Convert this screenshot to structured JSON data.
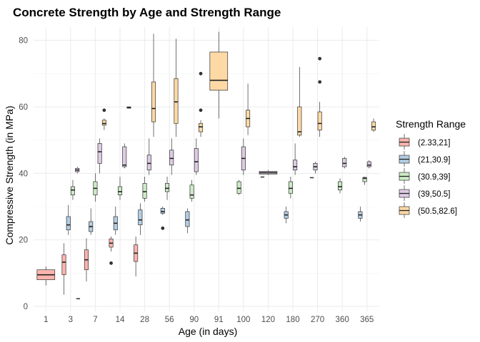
{
  "chart_data": {
    "type": "box",
    "title": "Concrete Strength by Age and Strength Range",
    "xlabel": "Age (in days)",
    "ylabel": "Compressive Strength (in MPa)",
    "ylim": [
      -1.5,
      84
    ],
    "yticks": [
      0,
      20,
      40,
      60,
      80
    ],
    "grid": true,
    "legend_position": "right",
    "legend_title": "Strength Range",
    "categories": [
      "1",
      "3",
      "7",
      "14",
      "28",
      "56",
      "90",
      "91",
      "100",
      "120",
      "180",
      "270",
      "360",
      "365"
    ],
    "series": [
      {
        "name": "(2.33,21]",
        "color": "#FBB4AE",
        "boxes": [
          {
            "category": "1",
            "q1": 8,
            "median": 9.5,
            "q3": 11,
            "whisker_low": 6.3,
            "whisker_high": 12,
            "outliers": []
          },
          {
            "category": "3",
            "q1": 9.5,
            "median": 13.3,
            "q3": 15.5,
            "whisker_low": 3.5,
            "whisker_high": 19,
            "outliers": []
          },
          {
            "category": "7",
            "q1": 11,
            "median": 14,
            "q3": 17,
            "whisker_low": 7.5,
            "whisker_high": 20.5,
            "outliers": []
          },
          {
            "category": "14",
            "q1": 17.8,
            "median": 19,
            "q3": 20.3,
            "whisker_low": 16.5,
            "whisker_high": 21,
            "outliers": [
              13
            ]
          },
          {
            "category": "28",
            "q1": 13.5,
            "median": 16,
            "q3": 18.5,
            "whisker_low": 9,
            "whisker_high": 21,
            "outliers": []
          }
        ]
      },
      {
        "name": "(21,30.9]",
        "color": "#B3CDE3",
        "boxes": [
          {
            "category": "3",
            "q1": 23,
            "median": 24.5,
            "q3": 27,
            "whisker_low": 21.5,
            "whisker_high": 30.5,
            "outliers": []
          },
          {
            "category": "7",
            "q1": 22.5,
            "median": 24,
            "q3": 25.5,
            "whisker_low": 21.5,
            "whisker_high": 29.5,
            "outliers": []
          },
          {
            "category": "14",
            "q1": 23,
            "median": 25,
            "q3": 27,
            "whisker_low": 21.5,
            "whisker_high": 30,
            "outliers": []
          },
          {
            "category": "28",
            "q1": 24.5,
            "median": 26,
            "q3": 29,
            "whisker_low": 21.5,
            "whisker_high": 31,
            "outliers": []
          },
          {
            "category": "56",
            "q1": 28,
            "median": 28.5,
            "q3": 29.5,
            "whisker_low": 27.5,
            "whisker_high": 30,
            "outliers": [
              23.5
            ]
          },
          {
            "category": "90",
            "q1": 24,
            "median": 26,
            "q3": 28.5,
            "whisker_low": 22,
            "whisker_high": 29.5,
            "outliers": []
          },
          {
            "category": "180",
            "q1": 26.5,
            "median": 27.5,
            "q3": 28.5,
            "whisker_low": 25,
            "whisker_high": 30,
            "outliers": []
          },
          {
            "category": "365",
            "q1": 26.5,
            "median": 27.5,
            "q3": 28.5,
            "whisker_low": 25.5,
            "whisker_high": 30,
            "outliers": []
          }
        ]
      },
      {
        "name": "(30.9,39]",
        "color": "#CCEBC5",
        "boxes": [
          {
            "category": "3",
            "q1": 33.5,
            "median": 35,
            "q3": 36,
            "whisker_low": 32,
            "whisker_high": 38,
            "outliers": []
          },
          {
            "category": "7",
            "q1": 33.5,
            "median": 35.5,
            "q3": 37.5,
            "whisker_low": 31.5,
            "whisker_high": 40,
            "outliers": []
          },
          {
            "category": "14",
            "q1": 33.5,
            "median": 34.5,
            "q3": 36,
            "whisker_low": 32,
            "whisker_high": 39,
            "outliers": []
          },
          {
            "category": "28",
            "q1": 32.5,
            "median": 34.5,
            "q3": 37,
            "whisker_low": 31.5,
            "whisker_high": 39,
            "outliers": []
          },
          {
            "category": "56",
            "q1": 34.5,
            "median": 35.5,
            "q3": 37,
            "whisker_low": 32,
            "whisker_high": 39,
            "outliers": []
          },
          {
            "category": "90",
            "q1": 32.5,
            "median": 33.5,
            "q3": 36.5,
            "whisker_low": 31.5,
            "whisker_high": 38,
            "outliers": []
          },
          {
            "category": "100",
            "q1": 34,
            "median": 35.5,
            "q3": 37.5,
            "whisker_low": 33.5,
            "whisker_high": 38,
            "outliers": []
          },
          {
            "category": "180",
            "q1": 34,
            "median": 35.5,
            "q3": 37.5,
            "whisker_low": 32.5,
            "whisker_high": 39,
            "outliers": []
          },
          {
            "category": "360",
            "q1": 35,
            "median": 36,
            "q3": 37.5,
            "whisker_low": 34,
            "whisker_high": 38.5,
            "outliers": []
          },
          {
            "category": "365",
            "q1": 37.5,
            "median": 38.5,
            "q3": 38.8,
            "whisker_low": 36.5,
            "whisker_high": 39,
            "outliers": []
          }
        ]
      },
      {
        "name": "(39,50.5]",
        "color": "#DECBE4",
        "boxes": [
          {
            "category": "3",
            "q1": 40.5,
            "median": 41,
            "q3": 41.5,
            "whisker_low": 40,
            "whisker_high": 42,
            "outliers": []
          },
          {
            "category": "7",
            "q1": 43,
            "median": 46.5,
            "q3": 49,
            "whisker_low": 40,
            "whisker_high": 50.5,
            "outliers": []
          },
          {
            "category": "14",
            "q1": 42,
            "median": 42.5,
            "q3": 48,
            "whisker_low": 41.5,
            "whisker_high": 49,
            "outliers": []
          },
          {
            "category": "28",
            "q1": 41,
            "median": 43,
            "q3": 45.5,
            "whisker_low": 39.5,
            "whisker_high": 50.5,
            "outliers": []
          },
          {
            "category": "56",
            "q1": 42.5,
            "median": 44.5,
            "q3": 47,
            "whisker_low": 39.5,
            "whisker_high": 50.5,
            "outliers": []
          },
          {
            "category": "90",
            "q1": 40.5,
            "median": 43.5,
            "q3": 47.5,
            "whisker_low": 39.5,
            "whisker_high": 50.5,
            "outliers": []
          },
          {
            "category": "100",
            "q1": 41,
            "median": 44.5,
            "q3": 48,
            "whisker_low": 39.5,
            "whisker_high": 50.5,
            "outliers": []
          },
          {
            "category": "120",
            "q1": 39.8,
            "median": 40.2,
            "q3": 40.6,
            "whisker_low": 39.5,
            "whisker_high": 41,
            "outliers": []
          },
          {
            "category": "180",
            "q1": 41,
            "median": 42,
            "q3": 44,
            "whisker_low": 39.5,
            "whisker_high": 49,
            "outliers": []
          },
          {
            "category": "270",
            "q1": 41,
            "median": 42,
            "q3": 43,
            "whisker_low": 40,
            "whisker_high": 43.5,
            "outliers": []
          },
          {
            "category": "360",
            "q1": 42,
            "median": 43,
            "q3": 44.5,
            "whisker_low": 41.5,
            "whisker_high": 45,
            "outliers": []
          },
          {
            "category": "365",
            "q1": 42,
            "median": 42.5,
            "q3": 43.5,
            "whisker_low": 41.5,
            "whisker_high": 44,
            "outliers": []
          }
        ]
      },
      {
        "name": "(50.5,82.6]",
        "color": "#FED9A6",
        "boxes": [
          {
            "category": "7",
            "q1": 54.5,
            "median": 55,
            "q3": 56,
            "whisker_low": 53,
            "whisker_high": 56.5,
            "outliers": [
              59
            ]
          },
          {
            "category": "14",
            "q1": 59.6,
            "median": 59.8,
            "q3": 60,
            "whisker_low": 59.5,
            "whisker_high": 60,
            "outliers": []
          },
          {
            "category": "28",
            "q1": 55.5,
            "median": 59.5,
            "q3": 67.5,
            "whisker_low": 51,
            "whisker_high": 82,
            "outliers": []
          },
          {
            "category": "56",
            "q1": 55,
            "median": 61.5,
            "q3": 68.5,
            "whisker_low": 51,
            "whisker_high": 80.5,
            "outliers": []
          },
          {
            "category": "90",
            "q1": 52.5,
            "median": 54,
            "q3": 55,
            "whisker_low": 51,
            "whisker_high": 56,
            "outliers": [
              59,
              70
            ]
          },
          {
            "category": "91",
            "q1": 65,
            "median": 68,
            "q3": 76.5,
            "whisker_low": 56.5,
            "whisker_high": 82.6,
            "outliers": []
          },
          {
            "category": "100",
            "q1": 54,
            "median": 56.5,
            "q3": 59,
            "whisker_low": 51.5,
            "whisker_high": 67,
            "outliers": []
          },
          {
            "category": "180",
            "q1": 51.5,
            "median": 52.5,
            "q3": 60,
            "whisker_low": 51,
            "whisker_high": 72,
            "outliers": []
          },
          {
            "category": "270",
            "q1": 53,
            "median": 55,
            "q3": 58.5,
            "whisker_low": 51,
            "whisker_high": 61.5,
            "outliers": [
              67.5,
              74.5
            ]
          },
          {
            "category": "365",
            "q1": 53,
            "median": 54,
            "q3": 55.5,
            "whisker_low": 52.5,
            "whisker_high": 56.5,
            "outliers": []
          }
        ]
      }
    ],
    "extra_marks": [
      {
        "category": "3",
        "value": 2.3,
        "note": "single-point box (2.33,21]"
      },
      {
        "category": "120",
        "value": 38.9,
        "note": "flat box (30.9,39]"
      },
      {
        "category": "270",
        "value": 38.7,
        "note": "flat box (30.9,39]"
      }
    ]
  }
}
